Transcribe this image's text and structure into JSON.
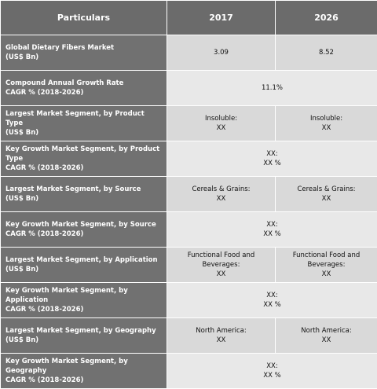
{
  "table": {
    "header": [
      "Particulars",
      "2017",
      "2026"
    ],
    "rows": [
      {
        "label": [
          "Global Dietary Fibers Market",
          "(US$ Bn)"
        ],
        "cells": [
          [
            "3.09"
          ],
          [
            "8.52"
          ]
        ]
      },
      {
        "label": [
          "Compound Annual Growth Rate",
          "CAGR % (2018-2026)"
        ],
        "cells": [
          [
            "11.1%"
          ]
        ]
      },
      {
        "label": [
          "Largest Market Segment, by Product Type",
          "(US$ Bn)"
        ],
        "cells": [
          [
            "Insoluble:",
            "XX"
          ],
          [
            "Insoluble:",
            "XX"
          ]
        ]
      },
      {
        "label": [
          "Key Growth Market Segment, by Product Type",
          "CAGR % (2018-2026)"
        ],
        "cells": [
          [
            "XX:",
            "XX %"
          ]
        ]
      },
      {
        "label": [
          "Largest Market Segment, by Source",
          "(US$ Bn)"
        ],
        "cells": [
          [
            "Cereals & Grains:",
            "XX"
          ],
          [
            "Cereals & Grains:",
            "XX"
          ]
        ]
      },
      {
        "label": [
          "Key Growth Market Segment, by Source",
          "CAGR % (2018-2026)"
        ],
        "cells": [
          [
            "XX:",
            "XX %"
          ]
        ]
      },
      {
        "label": [
          "Largest Market Segment, by Application",
          "(US$ Bn)"
        ],
        "cells": [
          [
            "Functional Food and Beverages:",
            "XX"
          ],
          [
            "Functional Food and Beverages:",
            "XX"
          ]
        ]
      },
      {
        "label": [
          "Key Growth Market Segment, by Application",
          "CAGR % (2018-2026)"
        ],
        "cells": [
          [
            "XX:",
            "XX %"
          ]
        ]
      },
      {
        "label": [
          "Largest Market Segment, by Geography",
          "(US$ Bn)"
        ],
        "cells": [
          [
            "North America:",
            "XX"
          ],
          [
            "North America:",
            "XX"
          ]
        ]
      },
      {
        "label": [
          "Key Growth Market Segment, by Geography",
          "CAGR % (2018-2026)"
        ],
        "cells": [
          [
            "XX:",
            "XX %"
          ]
        ]
      }
    ]
  }
}
